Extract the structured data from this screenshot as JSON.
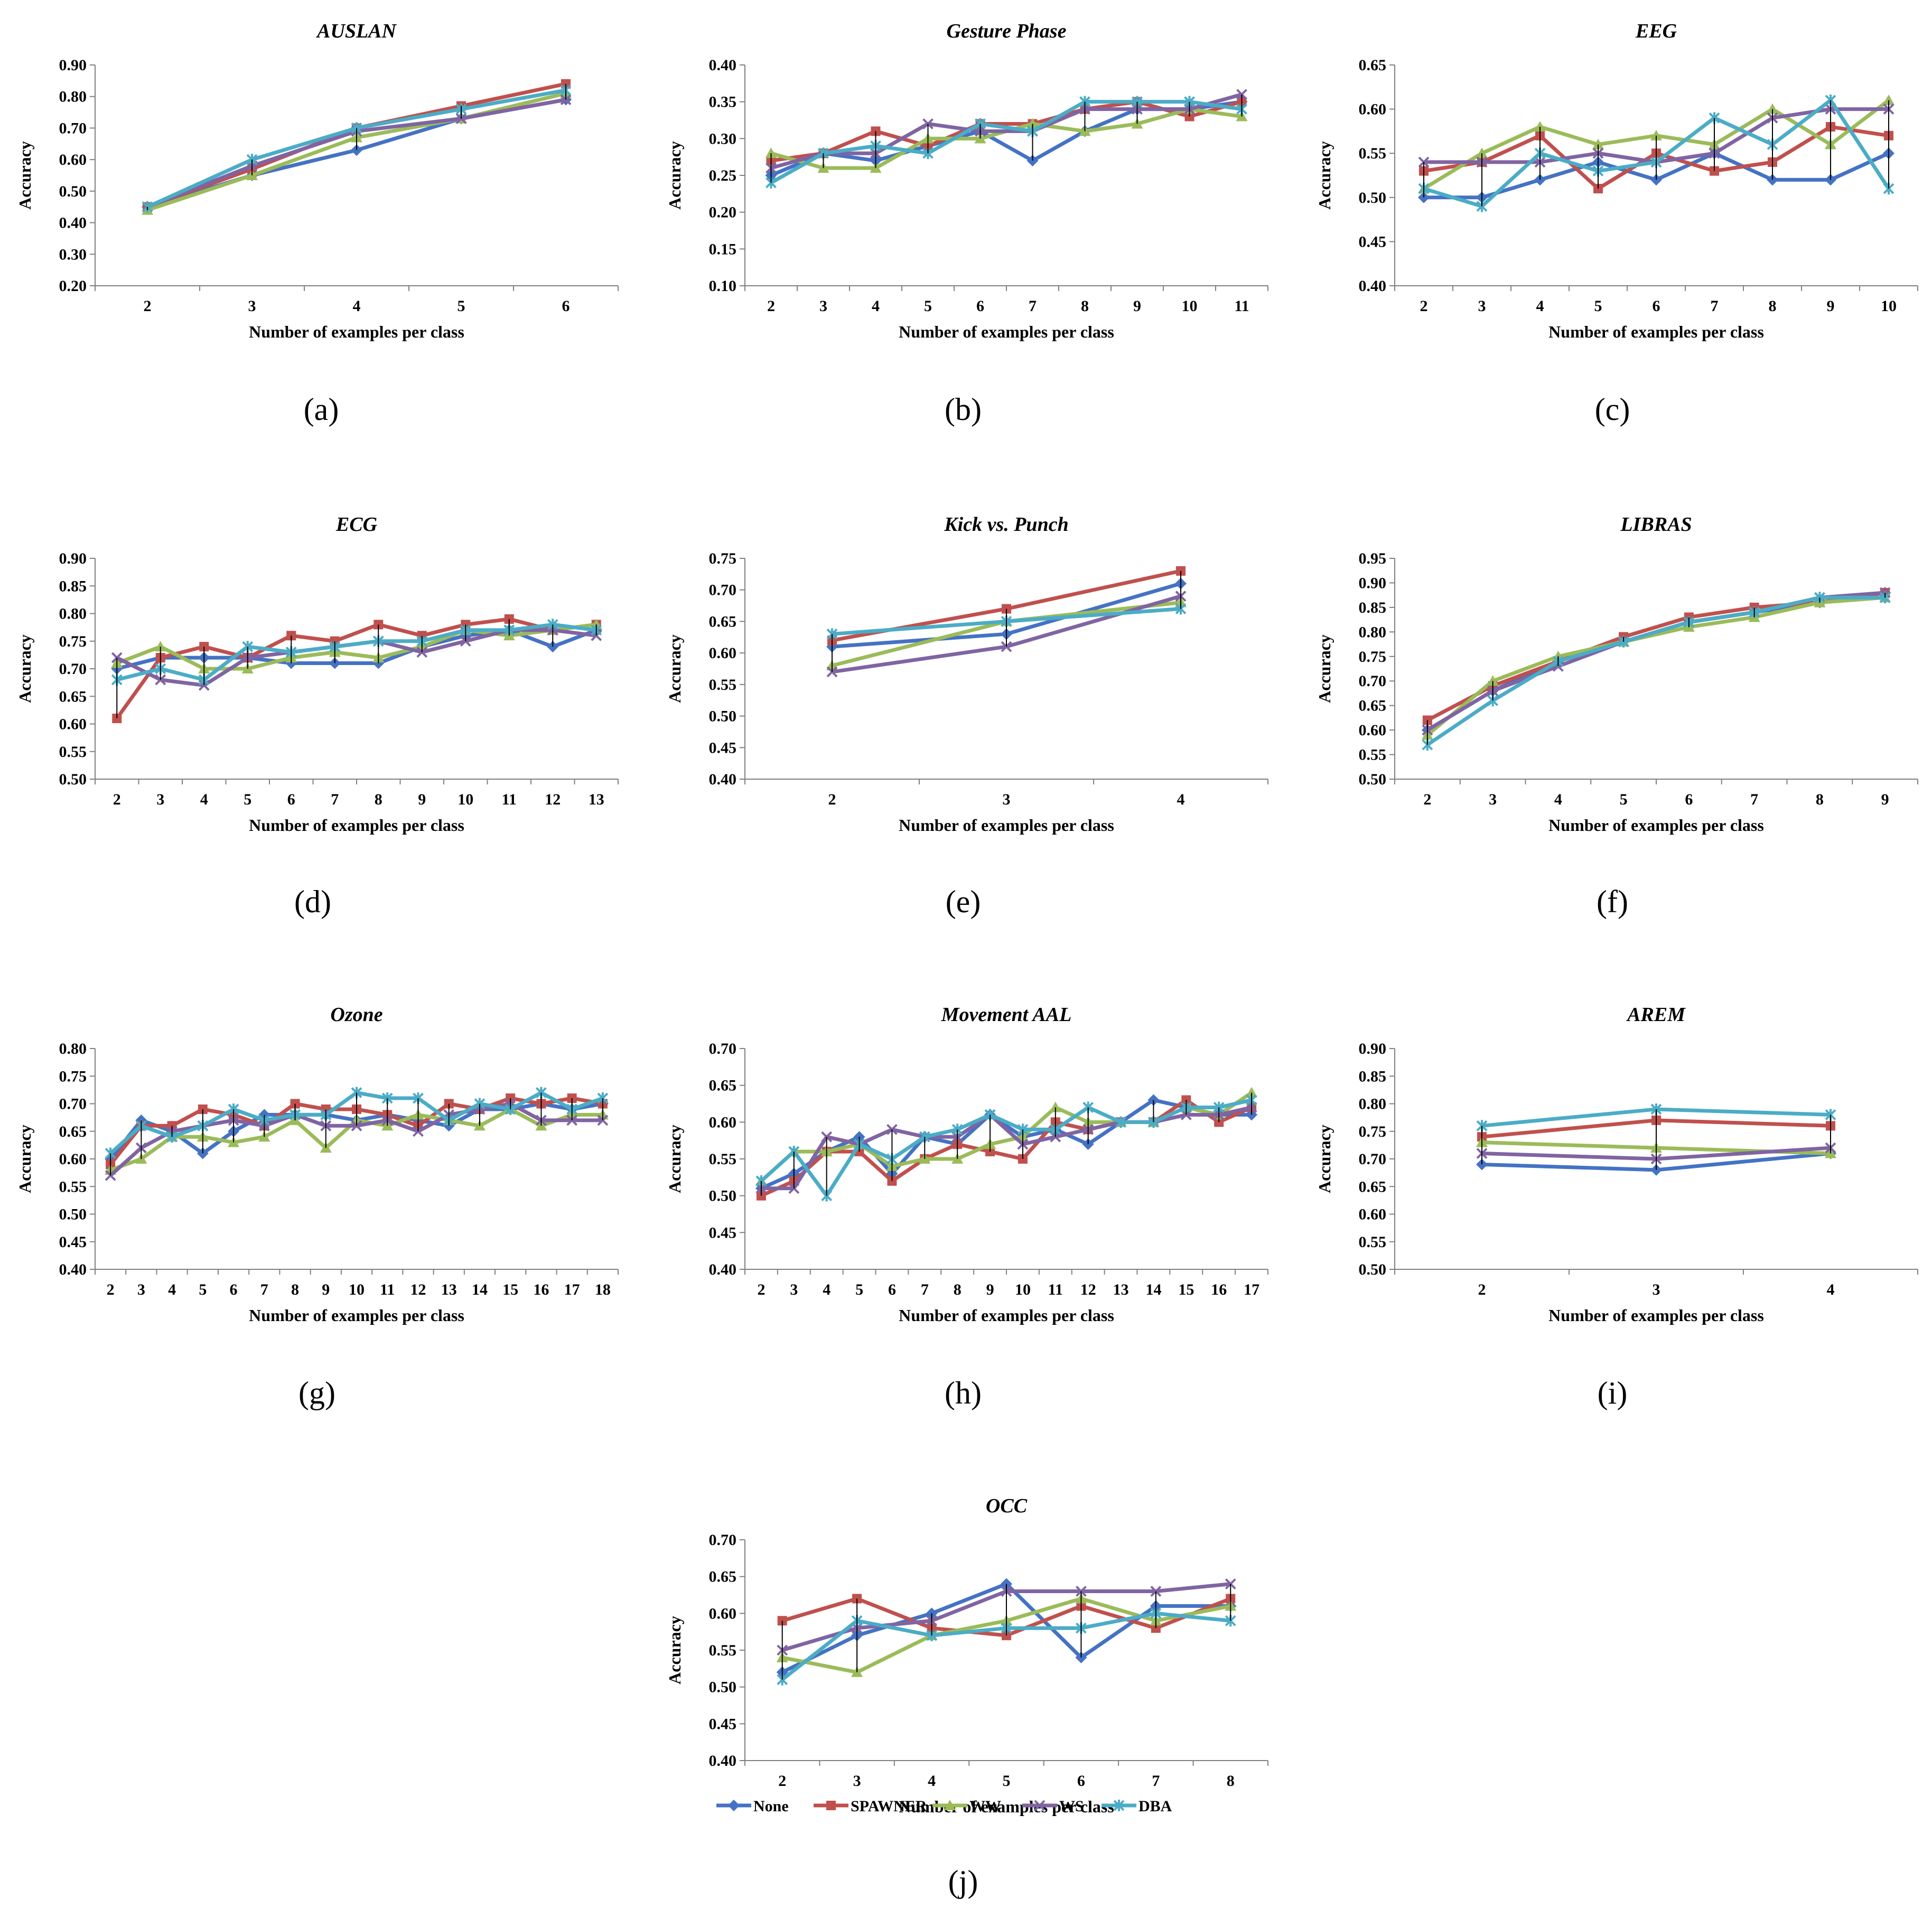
{
  "chart_data": [
    {
      "type": "line",
      "panel": "(a)",
      "title": "AUSLAN",
      "xlabel": "Number of examples per class",
      "ylabel": "Accuracy",
      "categories": [
        "2",
        "3",
        "4",
        "5",
        "6"
      ],
      "ylim": [
        0.2,
        0.9
      ],
      "yticks": [
        "0.20",
        "0.30",
        "0.40",
        "0.50",
        "0.60",
        "0.70",
        "0.80",
        "0.90"
      ],
      "series": [
        {
          "name": "None",
          "values": [
            0.45,
            0.55,
            0.63,
            0.73,
            0.79
          ]
        },
        {
          "name": "SPAWNER",
          "values": [
            0.45,
            0.57,
            0.7,
            0.77,
            0.84
          ]
        },
        {
          "name": "WW",
          "values": [
            0.44,
            0.55,
            0.67,
            0.73,
            0.81
          ]
        },
        {
          "name": "WS",
          "values": [
            0.45,
            0.58,
            0.69,
            0.73,
            0.79
          ]
        },
        {
          "name": "DBA",
          "values": [
            0.45,
            0.6,
            0.7,
            0.76,
            0.82
          ]
        }
      ]
    },
    {
      "type": "line",
      "panel": "(b)",
      "title": "Gesture Phase",
      "xlabel": "Number of examples per class",
      "ylabel": "Accuracy",
      "categories": [
        "2",
        "3",
        "4",
        "5",
        "6",
        "7",
        "8",
        "9",
        "10",
        "11"
      ],
      "ylim": [
        0.1,
        0.4
      ],
      "yticks": [
        "0.10",
        "0.15",
        "0.20",
        "0.25",
        "0.30",
        "0.35",
        "0.40"
      ],
      "series": [
        {
          "name": "None",
          "values": [
            0.25,
            0.28,
            0.27,
            0.29,
            0.31,
            0.27,
            0.31,
            0.34,
            0.34,
            0.35
          ]
        },
        {
          "name": "SPAWNER",
          "values": [
            0.27,
            0.28,
            0.31,
            0.29,
            0.32,
            0.32,
            0.34,
            0.35,
            0.33,
            0.35
          ]
        },
        {
          "name": "WW",
          "values": [
            0.28,
            0.26,
            0.26,
            0.3,
            0.3,
            0.32,
            0.31,
            0.32,
            0.34,
            0.33
          ]
        },
        {
          "name": "WS",
          "values": [
            0.26,
            0.28,
            0.28,
            0.32,
            0.31,
            0.31,
            0.34,
            0.34,
            0.34,
            0.36
          ]
        },
        {
          "name": "DBA",
          "values": [
            0.24,
            0.28,
            0.29,
            0.28,
            0.32,
            0.31,
            0.35,
            0.35,
            0.35,
            0.34
          ]
        }
      ]
    },
    {
      "type": "line",
      "panel": "(c)",
      "title": "EEG",
      "xlabel": "Number of examples per class",
      "ylabel": "Accuracy",
      "categories": [
        "2",
        "3",
        "4",
        "5",
        "6",
        "7",
        "8",
        "9",
        "10"
      ],
      "ylim": [
        0.4,
        0.65
      ],
      "yticks": [
        "0.40",
        "0.45",
        "0.50",
        "0.55",
        "0.60",
        "0.65"
      ],
      "series": [
        {
          "name": "None",
          "values": [
            0.5,
            0.5,
            0.52,
            0.54,
            0.52,
            0.55,
            0.52,
            0.52,
            0.55
          ]
        },
        {
          "name": "SPAWNER",
          "values": [
            0.53,
            0.54,
            0.57,
            0.51,
            0.55,
            0.53,
            0.54,
            0.58,
            0.57
          ]
        },
        {
          "name": "WW",
          "values": [
            0.51,
            0.55,
            0.58,
            0.56,
            0.57,
            0.56,
            0.6,
            0.56,
            0.61
          ]
        },
        {
          "name": "WS",
          "values": [
            0.54,
            0.54,
            0.54,
            0.55,
            0.54,
            0.55,
            0.59,
            0.6,
            0.6
          ]
        },
        {
          "name": "DBA",
          "values": [
            0.51,
            0.49,
            0.55,
            0.53,
            0.54,
            0.59,
            0.56,
            0.61,
            0.51
          ]
        }
      ]
    },
    {
      "type": "line",
      "panel": "(d)",
      "title": "ECG",
      "xlabel": "Number of examples per class",
      "ylabel": "Accuracy",
      "categories": [
        "2",
        "3",
        "4",
        "5",
        "6",
        "7",
        "8",
        "9",
        "10",
        "11",
        "12",
        "13"
      ],
      "ylim": [
        0.5,
        0.9
      ],
      "yticks": [
        "0.50",
        "0.55",
        "0.60",
        "0.65",
        "0.70",
        "0.75",
        "0.80",
        "0.85",
        "0.90"
      ],
      "series": [
        {
          "name": "None",
          "values": [
            0.7,
            0.72,
            0.72,
            0.72,
            0.71,
            0.71,
            0.71,
            0.74,
            0.76,
            0.77,
            0.74,
            0.77
          ]
        },
        {
          "name": "SPAWNER",
          "values": [
            0.61,
            0.72,
            0.74,
            0.72,
            0.76,
            0.75,
            0.78,
            0.76,
            0.78,
            0.79,
            0.77,
            0.78
          ]
        },
        {
          "name": "WW",
          "values": [
            0.71,
            0.74,
            0.7,
            0.7,
            0.72,
            0.73,
            0.72,
            0.74,
            0.77,
            0.76,
            0.77,
            0.78
          ]
        },
        {
          "name": "WS",
          "values": [
            0.72,
            0.68,
            0.67,
            0.72,
            0.73,
            0.74,
            0.75,
            0.73,
            0.75,
            0.77,
            0.77,
            0.76
          ]
        },
        {
          "name": "DBA",
          "values": [
            0.68,
            0.7,
            0.68,
            0.74,
            0.73,
            0.74,
            0.75,
            0.75,
            0.77,
            0.77,
            0.78,
            0.77
          ]
        }
      ]
    },
    {
      "type": "line",
      "panel": "(e)",
      "title": "Kick vs. Punch",
      "xlabel": "Number of examples per class",
      "ylabel": "Accuracy",
      "categories": [
        "2",
        "3",
        "4"
      ],
      "ylim": [
        0.4,
        0.75
      ],
      "yticks": [
        "0.40",
        "0.45",
        "0.50",
        "0.55",
        "0.60",
        "0.65",
        "0.70",
        "0.75"
      ],
      "series": [
        {
          "name": "None",
          "values": [
            0.61,
            0.63,
            0.71
          ]
        },
        {
          "name": "SPAWNER",
          "values": [
            0.62,
            0.67,
            0.73
          ]
        },
        {
          "name": "WW",
          "values": [
            0.58,
            0.65,
            0.68
          ]
        },
        {
          "name": "WS",
          "values": [
            0.57,
            0.61,
            0.69
          ]
        },
        {
          "name": "DBA",
          "values": [
            0.63,
            0.65,
            0.67
          ]
        }
      ]
    },
    {
      "type": "line",
      "panel": "(f)",
      "title": "LIBRAS",
      "xlabel": "Number of examples per class",
      "ylabel": "Accuracy",
      "categories": [
        "2",
        "3",
        "4",
        "5",
        "6",
        "7",
        "8",
        "9"
      ],
      "ylim": [
        0.5,
        0.95
      ],
      "yticks": [
        "0.50",
        "0.55",
        "0.60",
        "0.65",
        "0.70",
        "0.75",
        "0.80",
        "0.85",
        "0.90",
        "0.95"
      ],
      "series": [
        {
          "name": "None",
          "values": [
            0.6,
            0.68,
            0.74,
            0.78,
            0.82,
            0.84,
            0.86,
            0.88
          ]
        },
        {
          "name": "SPAWNER",
          "values": [
            0.62,
            0.69,
            0.74,
            0.79,
            0.83,
            0.85,
            0.86,
            0.88
          ]
        },
        {
          "name": "WW",
          "values": [
            0.59,
            0.7,
            0.75,
            0.78,
            0.81,
            0.83,
            0.86,
            0.87
          ]
        },
        {
          "name": "WS",
          "values": [
            0.6,
            0.68,
            0.73,
            0.78,
            0.82,
            0.84,
            0.87,
            0.88
          ]
        },
        {
          "name": "DBA",
          "values": [
            0.57,
            0.66,
            0.74,
            0.78,
            0.82,
            0.84,
            0.87,
            0.87
          ]
        }
      ]
    },
    {
      "type": "line",
      "panel": "(g)",
      "title": "Ozone",
      "xlabel": "Number of examples per class",
      "ylabel": "Accuracy",
      "categories": [
        "2",
        "3",
        "4",
        "5",
        "6",
        "7",
        "8",
        "9",
        "10",
        "11",
        "12",
        "13",
        "14",
        "15",
        "16",
        "17",
        "18"
      ],
      "ylim": [
        0.4,
        0.8
      ],
      "yticks": [
        "0.40",
        "0.45",
        "0.50",
        "0.55",
        "0.60",
        "0.65",
        "0.70",
        "0.75",
        "0.80"
      ],
      "series": [
        {
          "name": "None",
          "values": [
            0.6,
            0.67,
            0.65,
            0.61,
            0.65,
            0.68,
            0.68,
            0.68,
            0.67,
            0.68,
            0.67,
            0.66,
            0.69,
            0.69,
            0.7,
            0.69,
            0.7
          ]
        },
        {
          "name": "SPAWNER",
          "values": [
            0.59,
            0.66,
            0.66,
            0.69,
            0.68,
            0.66,
            0.7,
            0.69,
            0.69,
            0.68,
            0.66,
            0.7,
            0.69,
            0.71,
            0.7,
            0.71,
            0.7
          ]
        },
        {
          "name": "WW",
          "values": [
            0.58,
            0.6,
            0.64,
            0.64,
            0.63,
            0.64,
            0.67,
            0.62,
            0.67,
            0.66,
            0.68,
            0.67,
            0.66,
            0.69,
            0.66,
            0.68,
            0.68
          ]
        },
        {
          "name": "WS",
          "values": [
            0.57,
            0.62,
            0.65,
            0.66,
            0.67,
            0.66,
            0.68,
            0.66,
            0.66,
            0.67,
            0.65,
            0.68,
            0.69,
            0.7,
            0.67,
            0.67,
            0.67
          ]
        },
        {
          "name": "DBA",
          "values": [
            0.61,
            0.66,
            0.64,
            0.66,
            0.69,
            0.67,
            0.68,
            0.68,
            0.72,
            0.71,
            0.71,
            0.67,
            0.7,
            0.69,
            0.72,
            0.69,
            0.71
          ]
        }
      ]
    },
    {
      "type": "line",
      "panel": "(h)",
      "title": "Movement AAL",
      "xlabel": "Number of examples per class",
      "ylabel": "Accuracy",
      "categories": [
        "2",
        "3",
        "4",
        "5",
        "6",
        "7",
        "8",
        "9",
        "10",
        "11",
        "12",
        "13",
        "14",
        "15",
        "16",
        "17"
      ],
      "ylim": [
        0.4,
        0.7
      ],
      "yticks": [
        "0.40",
        "0.45",
        "0.50",
        "0.55",
        "0.60",
        "0.65",
        "0.70"
      ],
      "series": [
        {
          "name": "None",
          "values": [
            0.51,
            0.53,
            0.56,
            0.58,
            0.53,
            0.58,
            0.57,
            0.61,
            0.58,
            0.59,
            0.57,
            0.6,
            0.63,
            0.62,
            0.61,
            0.61
          ]
        },
        {
          "name": "SPAWNER",
          "values": [
            0.5,
            0.52,
            0.56,
            0.56,
            0.52,
            0.55,
            0.57,
            0.56,
            0.55,
            0.6,
            0.59,
            0.6,
            0.6,
            0.63,
            0.6,
            0.62
          ]
        },
        {
          "name": "WW",
          "values": [
            0.52,
            0.56,
            0.56,
            0.57,
            0.54,
            0.55,
            0.55,
            0.57,
            0.58,
            0.62,
            0.6,
            0.6,
            0.6,
            0.62,
            0.61,
            0.64
          ]
        },
        {
          "name": "WS",
          "values": [
            0.51,
            0.51,
            0.58,
            0.57,
            0.59,
            0.58,
            0.58,
            0.61,
            0.57,
            0.58,
            0.59,
            0.6,
            0.6,
            0.61,
            0.61,
            0.62
          ]
        },
        {
          "name": "DBA",
          "values": [
            0.52,
            0.56,
            0.5,
            0.57,
            0.55,
            0.58,
            0.59,
            0.61,
            0.59,
            0.59,
            0.62,
            0.6,
            0.6,
            0.62,
            0.62,
            0.63
          ]
        }
      ]
    },
    {
      "type": "line",
      "panel": "(i)",
      "title": "AREM",
      "xlabel": "Number of examples per class",
      "ylabel": "Accuracy",
      "categories": [
        "2",
        "3",
        "4"
      ],
      "ylim": [
        0.5,
        0.9
      ],
      "yticks": [
        "0.50",
        "0.55",
        "0.60",
        "0.65",
        "0.70",
        "0.75",
        "0.80",
        "0.85",
        "0.90"
      ],
      "series": [
        {
          "name": "None",
          "values": [
            0.69,
            0.68,
            0.71
          ]
        },
        {
          "name": "SPAWNER",
          "values": [
            0.74,
            0.77,
            0.76
          ]
        },
        {
          "name": "WW",
          "values": [
            0.73,
            0.72,
            0.71
          ]
        },
        {
          "name": "WS",
          "values": [
            0.71,
            0.7,
            0.72
          ]
        },
        {
          "name": "DBA",
          "values": [
            0.76,
            0.79,
            0.78
          ]
        }
      ]
    },
    {
      "type": "line",
      "panel": "(j)",
      "title": "OCC",
      "xlabel": "Number of examples per class",
      "ylabel": "Accuracy",
      "categories": [
        "2",
        "3",
        "4",
        "5",
        "6",
        "7",
        "8"
      ],
      "ylim": [
        0.4,
        0.7
      ],
      "yticks": [
        "0.40",
        "0.45",
        "0.50",
        "0.55",
        "0.60",
        "0.65",
        "0.70"
      ],
      "series": [
        {
          "name": "None",
          "values": [
            0.52,
            0.57,
            0.6,
            0.64,
            0.54,
            0.61,
            0.61
          ]
        },
        {
          "name": "SPAWNER",
          "values": [
            0.59,
            0.62,
            0.58,
            0.57,
            0.61,
            0.58,
            0.62
          ]
        },
        {
          "name": "WW",
          "values": [
            0.54,
            0.52,
            0.57,
            0.59,
            0.62,
            0.59,
            0.61
          ]
        },
        {
          "name": "WS",
          "values": [
            0.55,
            0.58,
            0.59,
            0.63,
            0.63,
            0.63,
            0.64
          ]
        },
        {
          "name": "DBA",
          "values": [
            0.51,
            0.59,
            0.57,
            0.58,
            0.58,
            0.6,
            0.59
          ]
        }
      ]
    }
  ],
  "legend": [
    {
      "name": "None",
      "color": "#4472c4",
      "marker": "diamond"
    },
    {
      "name": "SPAWNER",
      "color": "#c0504d",
      "marker": "square"
    },
    {
      "name": "WW",
      "color": "#9bbb59",
      "marker": "triangle"
    },
    {
      "name": "WS",
      "color": "#8064a2",
      "marker": "x"
    },
    {
      "name": "DBA",
      "color": "#4bacc6",
      "marker": "star"
    }
  ]
}
